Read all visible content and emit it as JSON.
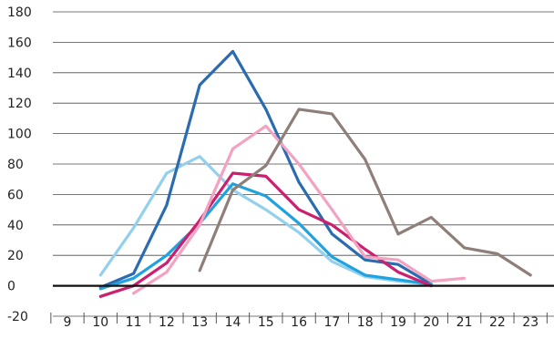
{
  "chart_data": {
    "type": "line",
    "title": "",
    "xlabel": "",
    "ylabel": "",
    "grid": true,
    "legend": "none",
    "x": [
      9,
      10,
      11,
      12,
      13,
      14,
      15,
      16,
      17,
      18,
      19,
      20,
      21,
      22,
      23
    ],
    "x_tick_labels": [
      "9",
      "10",
      "11",
      "12",
      "13",
      "14",
      "15",
      "16",
      "17",
      "18",
      "19",
      "20",
      "21",
      "22",
      "23"
    ],
    "ylim": [
      -20,
      180
    ],
    "y_ticks": [
      -20,
      0,
      20,
      40,
      60,
      80,
      100,
      120,
      140,
      160,
      180
    ],
    "y_tick_labels": [
      "-20",
      "0",
      "20",
      "40",
      "60",
      "80",
      "100",
      "120",
      "140",
      "160",
      "180"
    ],
    "series": [
      {
        "color": "#93d0ee",
        "points": [
          [
            10,
            7
          ],
          [
            11,
            38
          ],
          [
            12,
            74
          ],
          [
            13,
            85
          ],
          [
            14,
            63
          ],
          [
            15,
            50
          ],
          [
            16,
            35
          ],
          [
            17,
            16
          ],
          [
            18,
            6
          ],
          [
            19,
            3
          ],
          [
            20,
            1
          ]
        ]
      },
      {
        "color": "#2b6bb0",
        "points": [
          [
            10,
            -1
          ],
          [
            11,
            8
          ],
          [
            12,
            53
          ],
          [
            13,
            132
          ],
          [
            14,
            154
          ],
          [
            15,
            116
          ],
          [
            16,
            68
          ],
          [
            17,
            34
          ],
          [
            18,
            17
          ],
          [
            19,
            14
          ],
          [
            20,
            1
          ]
        ]
      },
      {
        "color": "#1fa2e0",
        "points": [
          [
            10,
            -2
          ],
          [
            11,
            5
          ],
          [
            12,
            20
          ],
          [
            13,
            41
          ],
          [
            14,
            67
          ],
          [
            15,
            59
          ],
          [
            16,
            41
          ],
          [
            17,
            19
          ],
          [
            18,
            7
          ],
          [
            19,
            4
          ],
          [
            20,
            1
          ]
        ]
      },
      {
        "color": "#cc1f6e",
        "points": [
          [
            10,
            -7
          ],
          [
            11,
            0
          ],
          [
            12,
            15
          ],
          [
            13,
            43
          ],
          [
            14,
            74
          ],
          [
            15,
            72
          ],
          [
            16,
            50
          ],
          [
            17,
            40
          ],
          [
            18,
            24
          ],
          [
            19,
            9
          ],
          [
            20,
            0
          ]
        ]
      },
      {
        "color": "#f2a3c1",
        "points": [
          [
            11,
            -5
          ],
          [
            12,
            9
          ],
          [
            13,
            40
          ],
          [
            14,
            90
          ],
          [
            15,
            105
          ],
          [
            16,
            80
          ],
          [
            17,
            50
          ],
          [
            18,
            19
          ],
          [
            19,
            17
          ],
          [
            20,
            3
          ],
          [
            21,
            5
          ]
        ]
      },
      {
        "color": "#8f7f79",
        "points": [
          [
            13,
            10
          ],
          [
            14,
            63
          ],
          [
            15,
            79
          ],
          [
            16,
            116
          ],
          [
            17,
            113
          ],
          [
            18,
            83
          ],
          [
            19,
            34
          ],
          [
            20,
            45
          ],
          [
            21,
            25
          ],
          [
            22,
            21
          ],
          [
            23,
            7
          ]
        ]
      }
    ]
  }
}
